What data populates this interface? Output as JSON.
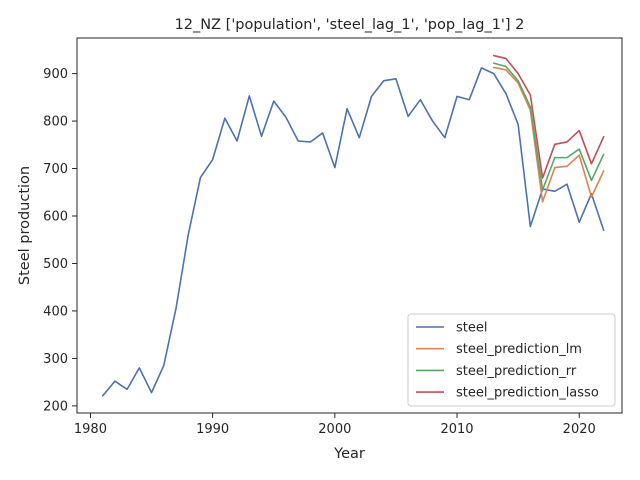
{
  "chart_data": {
    "type": "line",
    "title": "12_NZ ['population', 'steel_lag_1', 'pop_lag_1'] 2",
    "xlabel": "Year",
    "ylabel": "Steel production",
    "xlim": [
      1978.9,
      2023.5
    ],
    "ylim": [
      185,
      975
    ],
    "xticks": [
      1980,
      1990,
      2000,
      2010,
      2020
    ],
    "yticks": [
      200,
      300,
      400,
      500,
      600,
      700,
      800,
      900
    ],
    "grid": false,
    "legend_position": "bottom-right",
    "series": [
      {
        "name": "steel",
        "color": "#4c72b0",
        "x": [
          1981,
          1982,
          1983,
          1984,
          1985,
          1986,
          1987,
          1988,
          1989,
          1990,
          1991,
          1992,
          1993,
          1994,
          1995,
          1996,
          1997,
          1998,
          1999,
          2000,
          2001,
          2002,
          2003,
          2004,
          2005,
          2006,
          2007,
          2008,
          2009,
          2010,
          2011,
          2012,
          2013,
          2014,
          2015,
          2016,
          2017,
          2018,
          2019,
          2020,
          2021,
          2022
        ],
        "values": [
          221,
          252,
          235,
          280,
          228,
          285,
          405,
          560,
          681,
          719,
          806,
          758,
          853,
          768,
          842,
          808,
          758,
          756,
          775,
          702,
          826,
          765,
          852,
          885,
          889,
          810,
          845,
          800,
          765,
          852,
          845,
          912,
          900,
          858,
          793,
          578,
          657,
          652,
          667,
          587,
          647,
          570
        ]
      },
      {
        "name": "steel_prediction_lm",
        "color": "#dd8452",
        "x": [
          2013,
          2014,
          2015,
          2016,
          2017,
          2018,
          2019,
          2020,
          2021,
          2022
        ],
        "values": [
          913,
          908,
          880,
          823,
          630,
          702,
          705,
          728,
          640,
          695
        ]
      },
      {
        "name": "steel_prediction_rr",
        "color": "#55a868",
        "x": [
          2013,
          2014,
          2015,
          2016,
          2017,
          2018,
          2019,
          2020,
          2021,
          2022
        ],
        "values": [
          922,
          915,
          885,
          830,
          655,
          723,
          723,
          741,
          675,
          730
        ]
      },
      {
        "name": "steel_prediction_lasso",
        "color": "#c44e52",
        "x": [
          2013,
          2014,
          2015,
          2016,
          2017,
          2018,
          2019,
          2020,
          2021,
          2022
        ],
        "values": [
          938,
          932,
          900,
          855,
          680,
          751,
          756,
          780,
          710,
          767
        ]
      }
    ]
  }
}
